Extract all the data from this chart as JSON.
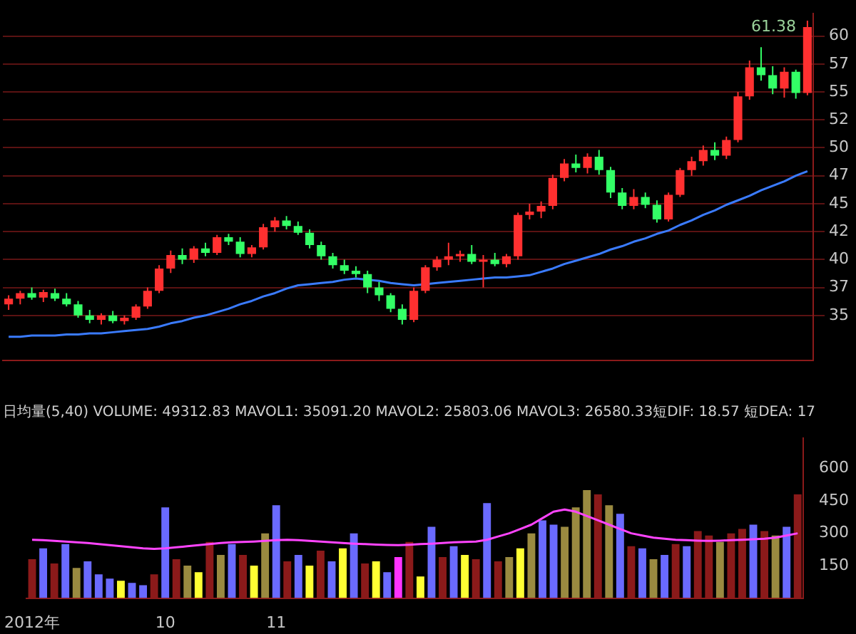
{
  "chart_data": [
    {
      "type": "candlestick",
      "categories": [
        null,
        null,
        null,
        null,
        null,
        null,
        null,
        null,
        null,
        null,
        null,
        null,
        null,
        null,
        null,
        null,
        null,
        null,
        null,
        null,
        null,
        null,
        null,
        null,
        null,
        null,
        null,
        null,
        null,
        null,
        null,
        null,
        null,
        null,
        null,
        null,
        null,
        null,
        null,
        null,
        null,
        null,
        null,
        null,
        null,
        null,
        null,
        null,
        null,
        null,
        null,
        null,
        null,
        null,
        null,
        null,
        null,
        null,
        null,
        null,
        null,
        null,
        null,
        null,
        null,
        null,
        null,
        null,
        null,
        null
      ],
      "ohlc": [
        [
          36,
          36.8,
          35.5,
          36.5
        ],
        [
          36.5,
          37.2,
          36,
          37
        ],
        [
          37,
          37.5,
          36.4,
          36.6
        ],
        [
          36.6,
          37.3,
          36.2,
          37.1
        ],
        [
          37,
          37.4,
          36.3,
          36.5
        ],
        [
          36.5,
          37,
          35.8,
          36
        ],
        [
          36,
          36.3,
          34.8,
          35
        ],
        [
          35,
          35.5,
          34.3,
          34.6
        ],
        [
          34.6,
          35.2,
          34.2,
          35
        ],
        [
          35,
          35.4,
          34.3,
          34.5
        ],
        [
          34.5,
          35,
          34.2,
          34.8
        ],
        [
          34.8,
          36,
          34.6,
          35.8
        ],
        [
          35.8,
          37.5,
          35.6,
          37.2
        ],
        [
          37.2,
          39.5,
          37,
          39.2
        ],
        [
          39.2,
          40.8,
          38.8,
          40.4
        ],
        [
          40.4,
          41,
          39.6,
          40
        ],
        [
          40,
          41.2,
          39.7,
          41
        ],
        [
          41,
          41.5,
          40.3,
          40.6
        ],
        [
          40.6,
          42.2,
          40.4,
          42
        ],
        [
          42,
          42.3,
          41.3,
          41.6
        ],
        [
          41.6,
          42,
          40.2,
          40.5
        ],
        [
          40.5,
          41.3,
          40.2,
          41.1
        ],
        [
          41.1,
          43.2,
          40.9,
          42.9
        ],
        [
          42.9,
          43.8,
          42.5,
          43.5
        ],
        [
          43.5,
          43.9,
          42.7,
          43
        ],
        [
          43,
          43.4,
          42.2,
          42.4
        ],
        [
          42.4,
          42.7,
          41,
          41.3
        ],
        [
          41.3,
          41.6,
          40,
          40.3
        ],
        [
          40.3,
          40.6,
          39.2,
          39.5
        ],
        [
          39.5,
          40,
          38.7,
          39
        ],
        [
          39,
          39.4,
          38.4,
          38.7
        ],
        [
          38.7,
          39,
          37,
          37.5
        ],
        [
          37.5,
          38,
          36.3,
          36.8
        ],
        [
          36.8,
          37,
          35.3,
          35.6
        ],
        [
          35.6,
          36,
          34.2,
          34.6
        ],
        [
          34.6,
          37.5,
          34.4,
          37.2
        ],
        [
          37.2,
          39.5,
          37,
          39.3
        ],
        [
          39.3,
          40.3,
          39,
          40
        ],
        [
          40,
          41.5,
          39.5,
          40.3
        ],
        [
          40.3,
          40.8,
          39.8,
          40.5
        ],
        [
          40.5,
          41.3,
          39.6,
          39.8
        ],
        [
          39.8,
          40.4,
          37.5,
          40
        ],
        [
          40,
          40.6,
          39.4,
          39.6
        ],
        [
          39.6,
          40.5,
          39.3,
          40.3
        ],
        [
          40.3,
          44.2,
          40,
          44
        ],
        [
          44,
          45,
          43.6,
          44.3
        ],
        [
          44.3,
          45.2,
          43.7,
          44.8
        ],
        [
          44.8,
          47.6,
          44.5,
          47.3
        ],
        [
          47.3,
          49,
          47,
          48.6
        ],
        [
          48.6,
          49.4,
          47.8,
          48.2
        ],
        [
          48.2,
          49.5,
          47.7,
          49.2
        ],
        [
          49.2,
          49.8,
          47.6,
          48
        ],
        [
          48,
          48.3,
          45.5,
          46
        ],
        [
          46,
          46.4,
          44.5,
          44.8
        ],
        [
          44.8,
          46.3,
          44.5,
          45.6
        ],
        [
          45.6,
          46,
          44.6,
          44.9
        ],
        [
          44.9,
          45.3,
          43.3,
          43.6
        ],
        [
          43.6,
          46,
          43.4,
          45.8
        ],
        [
          45.8,
          48.2,
          45.6,
          48
        ],
        [
          48,
          49.2,
          47.5,
          48.8
        ],
        [
          48.8,
          50.2,
          48.4,
          49.8
        ],
        [
          49.8,
          50.5,
          48.9,
          49.3
        ],
        [
          49.3,
          51,
          49,
          50.7
        ],
        [
          50.7,
          55,
          50.5,
          54.6
        ],
        [
          54.6,
          57.8,
          54.3,
          57.2
        ],
        [
          57.2,
          59,
          56,
          56.5
        ],
        [
          56.5,
          57.3,
          54.8,
          55.3
        ],
        [
          55.3,
          57.2,
          54.5,
          56.8
        ],
        [
          56.8,
          57,
          54.4,
          54.9
        ],
        [
          54.9,
          61.38,
          54.7,
          60.8
        ]
      ],
      "series": [
        {
          "type": "line",
          "color": "#3a7bff",
          "values": [
            33.1,
            33.1,
            33.2,
            33.2,
            33.2,
            33.3,
            33.3,
            33.4,
            33.4,
            33.5,
            33.6,
            33.7,
            33.8,
            34.0,
            34.3,
            34.5,
            34.8,
            35.0,
            35.3,
            35.6,
            36.0,
            36.3,
            36.7,
            37.0,
            37.4,
            37.7,
            37.8,
            37.9,
            38.0,
            38.2,
            38.3,
            38.2,
            38.1,
            37.9,
            37.8,
            37.7,
            37.8,
            37.9,
            38.0,
            38.1,
            38.2,
            38.3,
            38.4,
            38.4,
            38.5,
            38.6,
            38.9,
            39.2,
            39.6,
            39.9,
            40.2,
            40.5,
            40.9,
            41.2,
            41.6,
            41.9,
            42.3,
            42.6,
            43.1,
            43.5,
            44.0,
            44.4,
            44.9,
            45.3,
            45.7,
            46.2,
            46.6,
            47.0,
            47.5,
            47.9
          ]
        }
      ],
      "ylim": [
        31,
        62
      ],
      "yticks": [
        60,
        {
          "value": 57.5,
          "label": "57"
        },
        55,
        {
          "value": 52.5,
          "label": "52"
        },
        50,
        {
          "value": 47.5,
          "label": "47"
        },
        45,
        {
          "value": 42.5,
          "label": "42"
        },
        40,
        {
          "value": 37.5,
          "label": "37"
        },
        35
      ],
      "annotations": [
        "61.38"
      ],
      "grid": "y",
      "legend": false
    },
    {
      "type": "bar",
      "categories": [
        "2012年",
        null,
        null,
        null,
        null,
        null,
        null,
        null,
        null,
        null,
        null,
        null,
        "10",
        null,
        null,
        null,
        null,
        null,
        null,
        null,
        null,
        null,
        "11",
        null,
        null,
        null,
        null,
        null,
        null,
        null,
        null,
        null,
        null,
        null,
        null,
        null,
        null,
        null,
        null,
        null,
        null,
        null,
        null,
        null,
        null,
        null,
        null,
        null,
        null,
        null,
        null,
        null,
        null,
        null,
        null,
        null,
        null,
        null,
        null,
        null,
        null,
        null,
        null,
        null,
        null,
        null,
        null,
        null,
        null,
        null
      ],
      "series": [
        {
          "type": "bar",
          "values": [
            180,
            230,
            160,
            250,
            140,
            170,
            110,
            90,
            80,
            70,
            60,
            110,
            420,
            180,
            150,
            120,
            260,
            200,
            250,
            200,
            150,
            300,
            430,
            170,
            200,
            150,
            220,
            170,
            230,
            300,
            160,
            170,
            120,
            190,
            260,
            100,
            330,
            190,
            240,
            200,
            180,
            440,
            170,
            190,
            230,
            300,
            360,
            340,
            330,
            420,
            500,
            480,
            430,
            390,
            240,
            230,
            180,
            200,
            250,
            240,
            310,
            290,
            260,
            300,
            320,
            340,
            310,
            290,
            330,
            480
          ],
          "colors": [
            "#8b1a1a",
            "#6a6aff",
            "#8b1a1a",
            "#6a6aff",
            "#9a8a40",
            "#6a6aff",
            "#6a6aff",
            "#6a6aff",
            "#ffff33",
            "#6a6aff",
            "#6a6aff",
            "#8b1a1a",
            "#6a6aff",
            "#8b1a1a",
            "#9a8a40",
            "#ffff33",
            "#8b1a1a",
            "#9a8a40",
            "#6a6aff",
            "#8b1a1a",
            "#ffff33",
            "#9a8a40",
            "#6a6aff",
            "#8b1a1a",
            "#6a6aff",
            "#ffff33",
            "#8b1a1a",
            "#6a6aff",
            "#ffff33",
            "#6a6aff",
            "#8b1a1a",
            "#ffff33",
            "#6a6aff",
            "#ff33ff",
            "#8b1a1a",
            "#ffff33",
            "#6a6aff",
            "#8b1a1a",
            "#6a6aff",
            "#ffff33",
            "#8b1a1a",
            "#6a6aff",
            "#8b1a1a",
            "#9a8a40",
            "#ffff33",
            "#9a8a40",
            "#6a6aff",
            "#6a6aff",
            "#9a8a40",
            "#9a8a40",
            "#9a8a40",
            "#8b1a1a",
            "#9a8a40",
            "#6a6aff",
            "#8b1a1a",
            "#6a6aff",
            "#9a8a40",
            "#6a6aff",
            "#8b1a1a",
            "#6a6aff",
            "#8b1a1a",
            "#8b1a1a",
            "#9a8a40",
            "#8b1a1a",
            "#8b1a1a",
            "#6a6aff",
            "#8b1a1a",
            "#9a8a40",
            "#6a6aff",
            "#8b1a1a"
          ]
        },
        {
          "type": "line",
          "color": "#ff44ff",
          "values": [
            270,
            268,
            265,
            262,
            258,
            255,
            250,
            245,
            240,
            235,
            230,
            228,
            230,
            235,
            240,
            245,
            250,
            255,
            258,
            260,
            262,
            265,
            268,
            270,
            268,
            265,
            262,
            258,
            255,
            252,
            250,
            248,
            246,
            245,
            247,
            250,
            252,
            255,
            258,
            260,
            262,
            270,
            285,
            300,
            320,
            340,
            370,
            400,
            410,
            400,
            380,
            360,
            340,
            320,
            300,
            290,
            280,
            275,
            270,
            268,
            266,
            265,
            266,
            268,
            270,
            272,
            275,
            280,
            290,
            300
          ]
        }
      ],
      "ylim": [
        0,
        740
      ],
      "yticks": [
        150,
        300,
        450,
        600
      ],
      "annotations": [
        "日均量(5,40) VOLUME: 49312.83 MAVOL1: 35091.20 MAVOL2: 25803.06 MAVOL3: 26580.33",
        "短DIF: 18.57 短DEA: 17"
      ],
      "grid": false,
      "legend": false
    }
  ]
}
